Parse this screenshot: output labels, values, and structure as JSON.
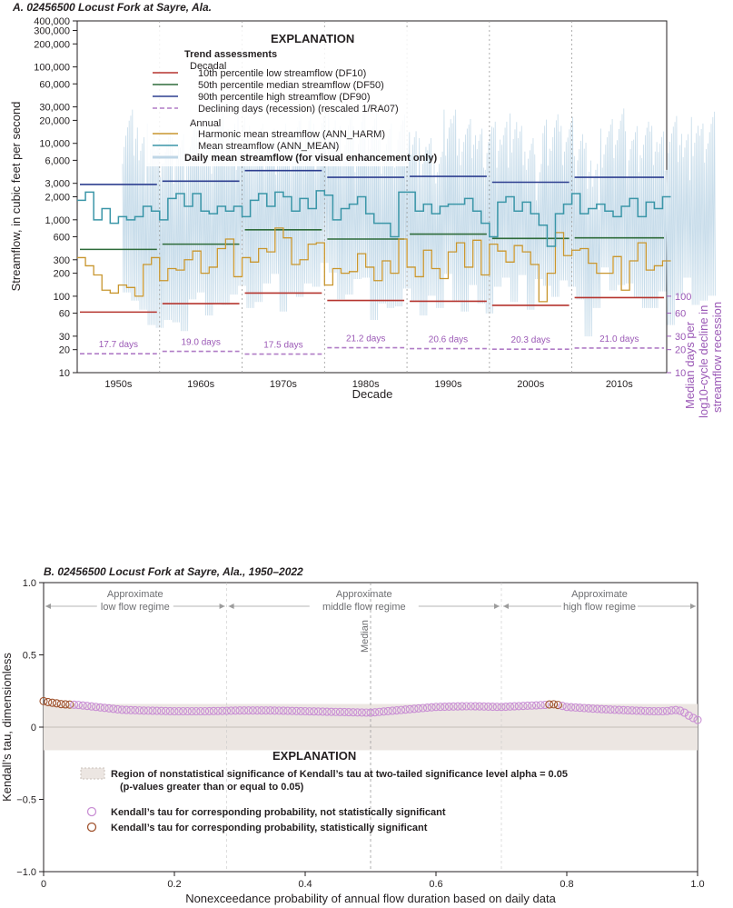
{
  "panelA": {
    "title": "A. 02456500 Locust Fork at Sayre, Ala.",
    "ylabel": "Streamflow, in cubic feet per second",
    "y2label": [
      "Median days per",
      "log10-cycle decline in",
      "streamflow recession"
    ],
    "xlabel": "Decade",
    "yticks": [
      10,
      20,
      30,
      60,
      100,
      200,
      300,
      600,
      1000,
      2000,
      3000,
      6000,
      10000,
      20000,
      30000,
      60000,
      100000,
      200000,
      300000,
      400000
    ],
    "ytick_labels": [
      "10",
      "20",
      "30",
      "60",
      "100",
      "200",
      "300",
      "600",
      "1,000",
      "2,000",
      "3,000",
      "6,000",
      "10,000",
      "20,000",
      "30,000",
      "60,000",
      "100,000",
      "200,000",
      "300,000",
      "400,000"
    ],
    "y2ticks": [
      10,
      20,
      30,
      60,
      100
    ],
    "explanation": {
      "title": "EXPLANATION",
      "trend_header": "Trend assessments",
      "decadal_header": "Decadal",
      "annual_header": "Annual",
      "items": [
        {
          "label": "10th percentile low streamflow (DF10)",
          "color": "#b5342e",
          "dash": false
        },
        {
          "label": "50th percentile median streamflow (DF50)",
          "color": "#2e6b3a",
          "dash": false
        },
        {
          "label": "90th percentile high streamflow (DF90)",
          "color": "#2d3e8f",
          "dash": false
        },
        {
          "label": "Declining days (recession) (rescaled 1/RA07)",
          "color": "#b07cc6",
          "dash": true
        },
        {
          "label": "Harmonic mean streamflow (ANN_HARM)",
          "color": "#c8962e",
          "dash": false
        },
        {
          "label": "Mean streamflow (ANN_MEAN)",
          "color": "#3b96a8",
          "dash": false
        },
        {
          "label": "Daily mean streamflow (for visual enhancement only)",
          "color": "#bfd6e6",
          "dash": false
        }
      ]
    }
  },
  "panelB": {
    "title": "B. 02456500 Locust Fork at Sayre, Ala., 1950–2022",
    "ylabel": "Kendall’s tau, dimensionless",
    "xlabel": "Nonexceedance probability of annual flow duration based on daily data",
    "yticks": [
      "1.0",
      "0.5",
      "0",
      "−0.5",
      "−1.0"
    ],
    "xticks": [
      "0",
      "0.2",
      "0.4",
      "0.6",
      "0.8",
      "1.0"
    ],
    "regimes": [
      {
        "line1": "Approximate",
        "line2": "low flow regime"
      },
      {
        "line1": "Approximate",
        "line2": "middle flow regime"
      },
      {
        "line1": "Approximate",
        "line2": "high flow regime"
      }
    ],
    "median_label": "Median",
    "explanation": {
      "title": "EXPLANATION",
      "region_line1": "Region of nonstatistical significance of Kendall’s tau at two-tailed significance level alpha = 0.05",
      "region_line2": "(p-values greater than or equal to 0.05)",
      "not_sig": "Kendall’s tau for corresponding probability, not statistically significant",
      "sig": "Kendall’s tau for corresponding probability, statistically significant"
    }
  },
  "chart_data": [
    {
      "type": "line",
      "title": "A. 02456500 Locust Fork at Sayre, Ala.",
      "xlabel": "Decade",
      "ylabel": "Streamflow, in cubic feet per second",
      "y_scale": "log",
      "ylim": [
        10,
        400000
      ],
      "categories": [
        "1950s",
        "1960s",
        "1970s",
        "1980s",
        "1990s",
        "2000s",
        "2010s"
      ],
      "decadal": {
        "DF10": [
          62,
          80,
          110,
          88,
          86,
          76,
          96
        ],
        "DF50": [
          410,
          480,
          740,
          560,
          650,
          570,
          580
        ],
        "DF90": [
          2900,
          3200,
          4400,
          3600,
          3700,
          3100,
          3600
        ],
        "recession_days": [
          17.7,
          19.0,
          17.5,
          21.2,
          20.6,
          20.3,
          21.0
        ],
        "recession_labels": [
          "17.7 days",
          "19.0 days",
          "17.5 days",
          "21.2 days",
          "20.6 days",
          "20.3 days",
          "21.0 days"
        ]
      },
      "annual_years": [
        1950,
        1951,
        1952,
        1953,
        1954,
        1955,
        1956,
        1957,
        1958,
        1959,
        1960,
        1961,
        1962,
        1963,
        1964,
        1965,
        1966,
        1967,
        1968,
        1969,
        1970,
        1971,
        1972,
        1973,
        1974,
        1975,
        1976,
        1977,
        1978,
        1979,
        1980,
        1981,
        1982,
        1983,
        1984,
        1985,
        1986,
        1987,
        1988,
        1989,
        1990,
        1991,
        1992,
        1993,
        1994,
        1995,
        1996,
        1997,
        1998,
        1999,
        2000,
        2001,
        2002,
        2003,
        2004,
        2005,
        2006,
        2007,
        2008,
        2009,
        2010,
        2011,
        2012,
        2013,
        2014,
        2015,
        2016,
        2017,
        2018,
        2019,
        2020,
        2021
      ],
      "ANN_MEAN": [
        1800,
        2300,
        1000,
        1400,
        900,
        1100,
        1000,
        1100,
        1500,
        1300,
        1000,
        1900,
        2200,
        1500,
        2200,
        1300,
        1200,
        1500,
        1300,
        1500,
        1100,
        1800,
        2200,
        1500,
        2300,
        2000,
        1300,
        1900,
        1400,
        2400,
        2100,
        1000,
        1400,
        1600,
        2000,
        1200,
        900,
        900,
        600,
        2300,
        2300,
        1300,
        1600,
        1200,
        1500,
        1600,
        1600,
        1900,
        1300,
        900,
        600,
        1700,
        2000,
        1300,
        1700,
        1200,
        850,
        450,
        1200,
        1600,
        2200,
        1200,
        1400,
        1600,
        1300,
        1100,
        1500,
        1900,
        1100,
        1700,
        1400,
        2000
      ],
      "ANN_HARM": [
        320,
        250,
        190,
        120,
        110,
        140,
        130,
        100,
        260,
        320,
        160,
        230,
        220,
        300,
        390,
        200,
        240,
        420,
        560,
        180,
        320,
        280,
        420,
        380,
        780,
        580,
        260,
        300,
        480,
        500,
        140,
        230,
        200,
        210,
        360,
        240,
        160,
        290,
        200,
        560,
        240,
        180,
        400,
        230,
        170,
        380,
        500,
        240,
        540,
        190,
        480,
        390,
        280,
        460,
        380,
        260,
        85,
        200,
        680,
        340,
        400,
        420,
        270,
        200,
        200,
        330,
        120,
        290,
        500,
        220,
        250,
        290
      ]
    },
    {
      "type": "scatter",
      "title": "B. 02456500 Locust Fork at Sayre, Ala., 1950–2022",
      "xlabel": "Nonexceedance probability of annual flow duration based on daily data",
      "ylabel": "Kendall’s tau, dimensionless",
      "xlim": [
        0,
        1
      ],
      "ylim": [
        -1,
        1
      ],
      "significance_band": [
        -0.16,
        0.16
      ],
      "x": [
        0.0,
        0.005,
        0.01,
        0.015,
        0.02,
        0.025,
        0.03,
        0.035,
        0.04,
        0.045,
        0.05,
        0.06,
        0.08,
        0.1,
        0.12,
        0.15,
        0.2,
        0.25,
        0.3,
        0.35,
        0.4,
        0.45,
        0.5,
        0.55,
        0.6,
        0.65,
        0.7,
        0.75,
        0.77,
        0.775,
        0.78,
        0.785,
        0.8,
        0.85,
        0.9,
        0.93,
        0.95,
        0.97,
        0.98,
        0.99,
        1.0
      ],
      "tau": [
        0.18,
        0.175,
        0.17,
        0.168,
        0.165,
        0.16,
        0.158,
        0.157,
        0.156,
        0.155,
        0.155,
        0.15,
        0.14,
        0.13,
        0.12,
        0.115,
        0.11,
        0.11,
        0.115,
        0.115,
        0.11,
        0.105,
        0.1,
        0.12,
        0.14,
        0.145,
        0.14,
        0.15,
        0.155,
        0.158,
        0.158,
        0.155,
        0.14,
        0.125,
        0.115,
        0.11,
        0.11,
        0.12,
        0.1,
        0.07,
        0.05
      ],
      "significant": [
        true,
        true,
        true,
        true,
        true,
        true,
        true,
        true,
        true,
        true,
        false,
        false,
        false,
        false,
        false,
        false,
        false,
        false,
        false,
        false,
        false,
        false,
        false,
        false,
        false,
        false,
        false,
        false,
        true,
        true,
        true,
        true,
        false,
        false,
        false,
        false,
        false,
        false,
        false,
        false,
        false
      ]
    }
  ]
}
